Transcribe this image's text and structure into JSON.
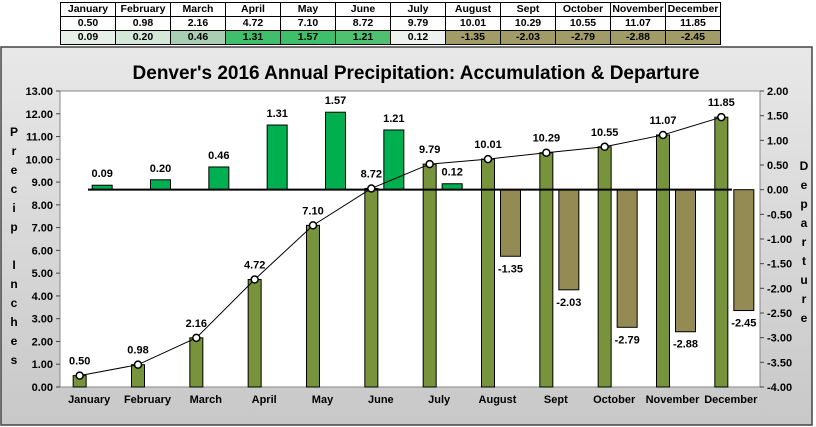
{
  "table": {
    "months": [
      "January",
      "February",
      "March",
      "April",
      "May",
      "June",
      "July",
      "August",
      "Sept",
      "October",
      "November",
      "December"
    ],
    "accumulation": [
      "0.50",
      "0.98",
      "2.16",
      "4.72",
      "7.10",
      "8.72",
      "9.79",
      "10.01",
      "10.29",
      "10.55",
      "11.07",
      "11.85"
    ],
    "departure": [
      "0.09",
      "0.20",
      "0.46",
      "1.31",
      "1.57",
      "1.21",
      "0.12",
      "-1.35",
      "-2.03",
      "-2.79",
      "-2.88",
      "-2.45"
    ],
    "departure_colors": [
      "#e6f0e8",
      "#d4e8d9",
      "#a9ceb3",
      "#3fbf6a",
      "#3fbf6a",
      "#4fc06f",
      "#eef2ee",
      "#a19b68",
      "#a19b68",
      "#a19b68",
      "#a19b68",
      "#a19b68"
    ]
  },
  "colors": {
    "accum_bar": "#77933c",
    "dep_pos_bar": "#00b050",
    "dep_neg_bar": "#948a54",
    "plot_bg": "#ffffff",
    "frame_bg": "#d9d9d9"
  },
  "chart_data": {
    "type": "bar",
    "title": "Denver's 2016 Annual Precipitation:  Accumulation & Departure",
    "categories": [
      "January",
      "February",
      "March",
      "April",
      "May",
      "June",
      "July",
      "August",
      "Sept",
      "October",
      "November",
      "December"
    ],
    "ylabel": "Precip Inches",
    "y2label": "Departure",
    "ylim": [
      0,
      13
    ],
    "y2lim": [
      -4,
      2
    ],
    "yticks": [
      "0.00",
      "1.00",
      "2.00",
      "3.00",
      "4.00",
      "5.00",
      "6.00",
      "7.00",
      "8.00",
      "9.00",
      "10.00",
      "11.00",
      "12.00",
      "13.00"
    ],
    "y2ticks": [
      "-4.00",
      "-3.50",
      "-3.00",
      "-2.50",
      "-2.00",
      "-1.50",
      "-1.00",
      "-0.50",
      "0.00",
      "0.50",
      "1.00",
      "1.50",
      "2.00"
    ],
    "series": [
      {
        "name": "",
        "axis": "left",
        "kind": "bar+line",
        "values": [
          0.5,
          0.98,
          2.16,
          4.72,
          7.1,
          8.72,
          9.79,
          10.01,
          10.29,
          10.55,
          11.07,
          11.85
        ],
        "labels": [
          "0.50",
          "0.98",
          "2.16",
          "4.72",
          "7.10",
          "8.72",
          "9.79",
          "10.01",
          "10.29",
          "10.55",
          "11.07",
          "11.85"
        ]
      },
      {
        "name": "",
        "axis": "right",
        "kind": "bar",
        "values": [
          0.09,
          0.2,
          0.46,
          1.31,
          1.57,
          1.21,
          0.12,
          -1.35,
          -2.03,
          -2.79,
          -2.88,
          -2.45
        ],
        "labels": [
          "0.09",
          "0.20",
          "0.46",
          "1.31",
          "1.57",
          "1.21",
          "0.12",
          "-1.35",
          "-2.03",
          "-2.79",
          "-2.88",
          "-2.45"
        ]
      }
    ],
    "grid": false,
    "legend": "none"
  }
}
